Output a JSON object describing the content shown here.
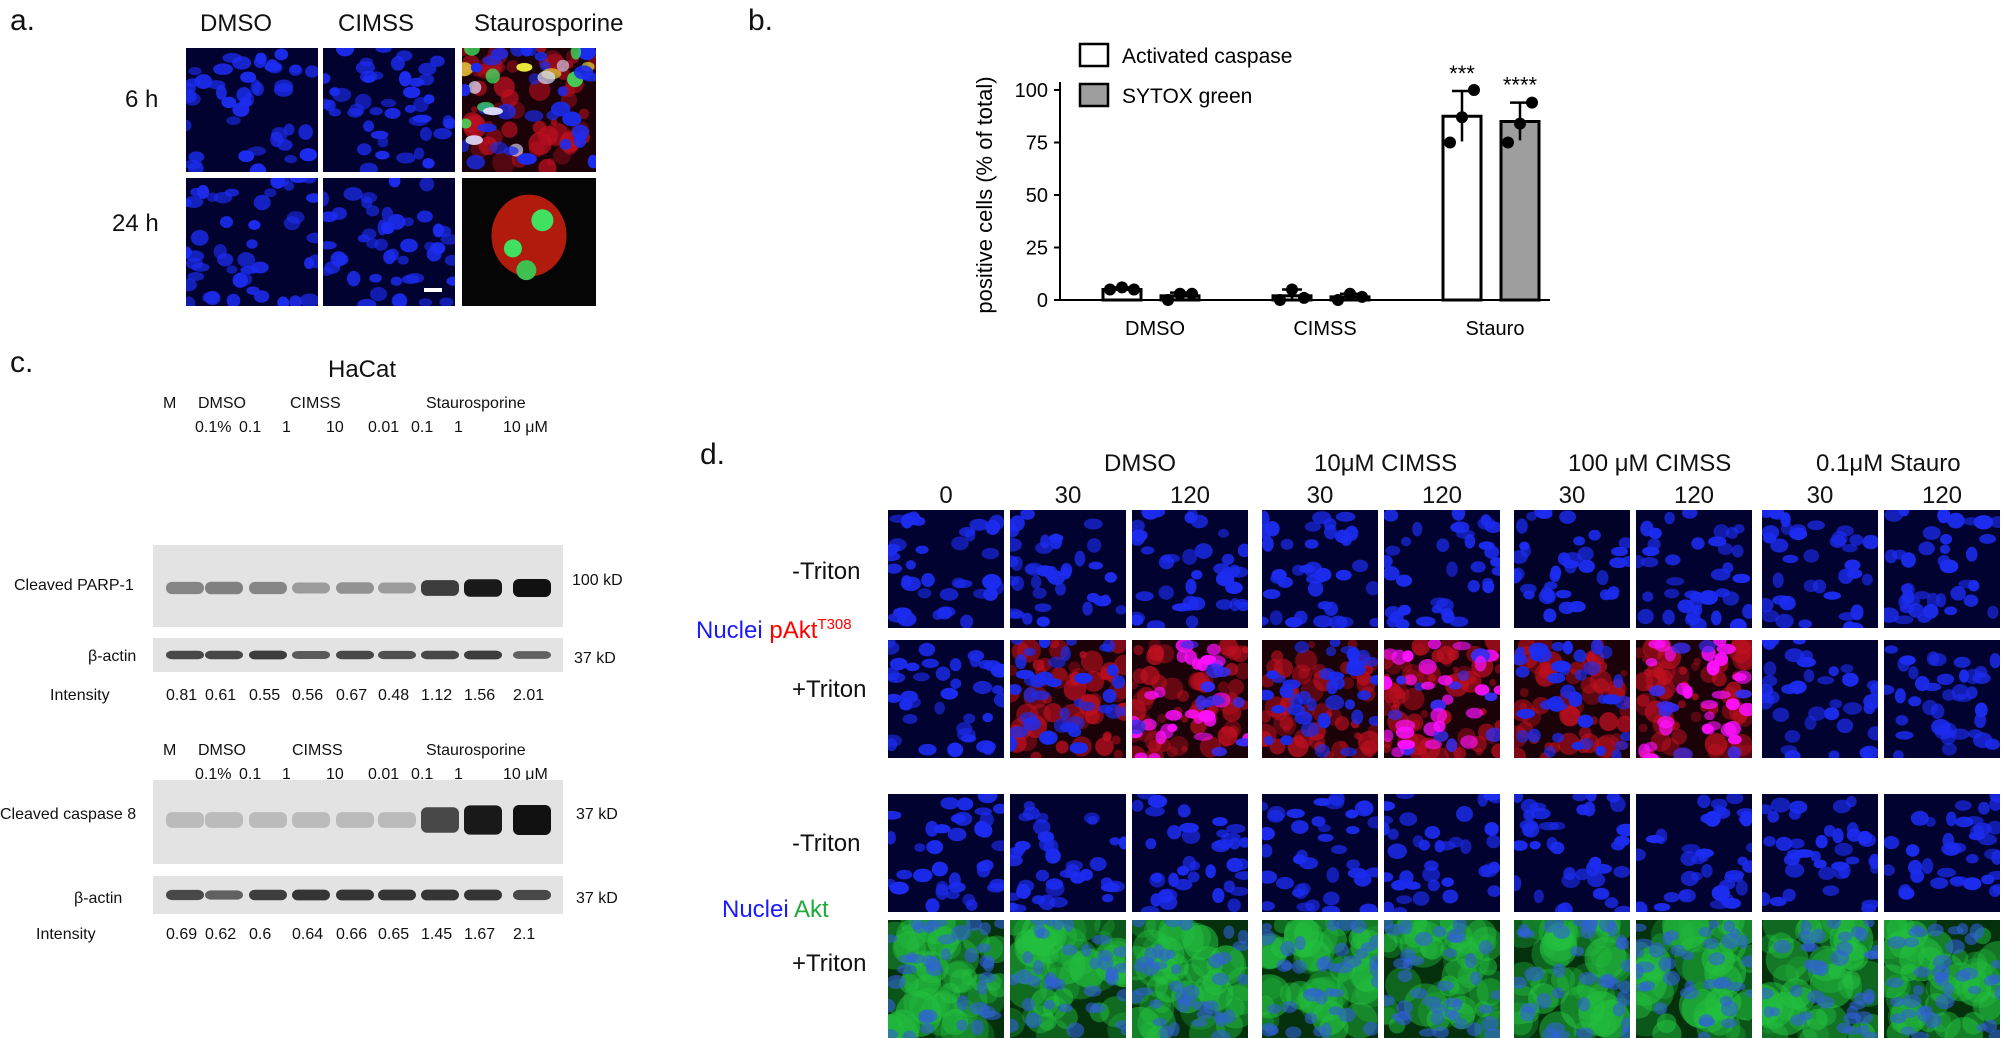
{
  "panel_a": {
    "letter": "a.",
    "columns": [
      "DMSO",
      "CIMSS",
      "Staurosporine"
    ],
    "rows": [
      "6 h",
      "24 h"
    ]
  },
  "panel_b": {
    "letter": "b.",
    "chart_data": {
      "type": "bar",
      "categories": [
        "DMSO",
        "CIMSS",
        "Stauro"
      ],
      "ylabel": "positive cells (% of total)",
      "ylim": [
        0,
        100
      ],
      "yticks": [
        "0",
        "25",
        "50",
        "75",
        "100"
      ],
      "legend_position": "top-left",
      "series": [
        {
          "name": "Activated caspase",
          "color": "#ffffff",
          "values": [
            5,
            2,
            87.5
          ],
          "errors": [
            1,
            3,
            12
          ],
          "points": [
            [
              5,
              6,
              5
            ],
            [
              0,
              5,
              1
            ],
            [
              75,
              87,
              100
            ]
          ]
        },
        {
          "name": "SYTOX green",
          "color": "#9e9e9e",
          "values": [
            2,
            1.5,
            85
          ],
          "errors": [
            1.5,
            1.5,
            9
          ],
          "points": [
            [
              0,
              3,
              3
            ],
            [
              0,
              3,
              1.5
            ],
            [
              75,
              84,
              94
            ]
          ]
        }
      ],
      "significance": [
        "***",
        "****"
      ]
    }
  },
  "panel_c": {
    "letter": "c.",
    "title": "HaCat",
    "lane_groups": {
      "m": "M",
      "dmso": "DMSO",
      "cimss": "CIMSS",
      "stauro": "Staurosporine"
    },
    "lane_values": [
      "0.1%",
      "0.1",
      "1",
      "10",
      "0.01",
      "0.1",
      "1",
      "10 μM"
    ],
    "blot1": {
      "protein": "Cleaved PARP-1",
      "kd": "100 kD",
      "loading": "β-actin",
      "loading_kd": "37 kD",
      "intensity_label": "Intensity",
      "intensities": [
        "0.81",
        "0.61",
        "0.55",
        "0.56",
        "0.67",
        "0.48",
        "1.12",
        "1.56",
        "2.01"
      ],
      "band_strength": [
        0.35,
        0.38,
        0.35,
        0.22,
        0.28,
        0.22,
        0.75,
        0.95,
        1.0
      ]
    },
    "blot2": {
      "protein": "Cleaved caspase 8",
      "kd": "37 kD",
      "loading": "β-actin",
      "loading_kd": "37 kD",
      "intensity_label": "Intensity",
      "intensities": [
        "0.69",
        "0.62",
        "0.6",
        "0.64",
        "0.66",
        "0.65",
        "1.45",
        "1.67",
        "2.1"
      ],
      "band_strength": [
        0.05,
        0.05,
        0.05,
        0.05,
        0.05,
        0.05,
        0.7,
        0.95,
        1.0
      ]
    }
  },
  "panel_d": {
    "letter": "d.",
    "conditions": [
      "DMSO",
      "10μM CIMSS",
      "100 μM CIMSS",
      "0.1μM Stauro"
    ],
    "time_labels": [
      "0",
      "30",
      "120",
      "30",
      "120",
      "30",
      "120",
      "30",
      "120"
    ],
    "row_labels": [
      "-Triton",
      "+Triton",
      "-Triton",
      "+Triton"
    ],
    "stain1": {
      "nuclei": "Nuclei",
      "marker": "pAkt",
      "superscript": "T308",
      "nuclei_color": "#1a1aff",
      "marker_color": "#ff0000"
    },
    "stain2": {
      "nuclei": "Nuclei",
      "marker": "Akt",
      "nuclei_color": "#1a1aff",
      "marker_color": "#1faa3a"
    }
  }
}
